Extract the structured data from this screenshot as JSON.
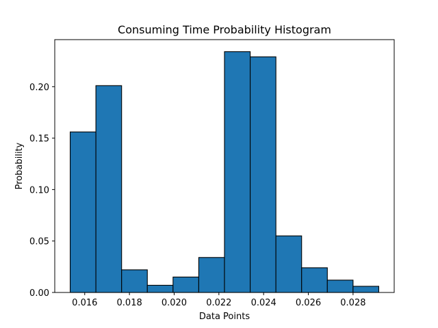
{
  "chart_data": {
    "type": "bar",
    "title": "Consuming Time Probability Histogram",
    "xlabel": "Data Points",
    "ylabel": "Probability",
    "bin_edges": [
      0.01535,
      0.0165,
      0.01765,
      0.0188,
      0.01995,
      0.0211,
      0.02225,
      0.0234,
      0.02455,
      0.0257,
      0.02685,
      0.028,
      0.02915
    ],
    "values": [
      0.156,
      0.201,
      0.022,
      0.007,
      0.015,
      0.034,
      0.234,
      0.229,
      0.055,
      0.024,
      0.012,
      0.006
    ],
    "xlim": [
      0.01466,
      0.02984
    ],
    "ylim": [
      0,
      0.2457
    ],
    "xticks": [
      0.016,
      0.018,
      0.02,
      0.022,
      0.024,
      0.026,
      0.028
    ],
    "xtick_labels": [
      "0.016",
      "0.018",
      "0.020",
      "0.022",
      "0.024",
      "0.026",
      "0.028"
    ],
    "yticks": [
      0.0,
      0.05,
      0.1,
      0.15,
      0.2
    ],
    "ytick_labels": [
      "0.00",
      "0.05",
      "0.10",
      "0.15",
      "0.20"
    ],
    "bar_color": "#1f77b4",
    "edge_color": "#000000",
    "grid": false,
    "legend": "none"
  }
}
